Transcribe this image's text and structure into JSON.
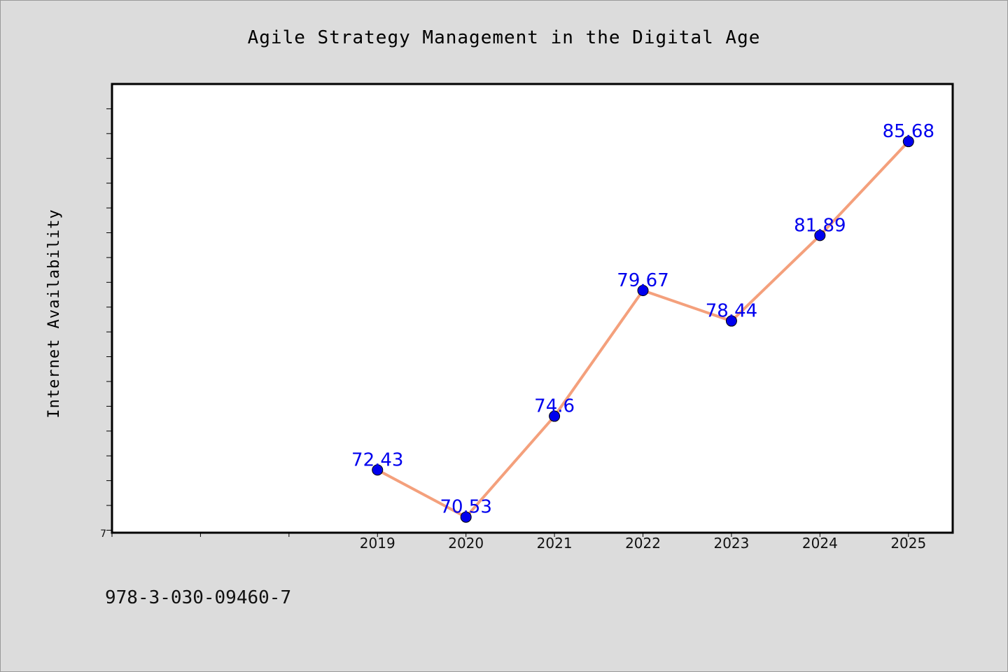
{
  "chart_data": {
    "type": "line",
    "title": "Agile Strategy Management in the Digital Age",
    "ylabel": "Internet Availability",
    "xlabel": "",
    "y_axis_min_label": "7",
    "categories": [
      "2019",
      "2020",
      "2021",
      "2022",
      "2023",
      "2024",
      "2025"
    ],
    "series": [
      {
        "values": [
          72.43,
          70.53,
          74.6,
          79.67,
          78.44,
          81.89,
          85.68
        ],
        "data_labels": [
          "72.43",
          "70.53",
          "74.6",
          "79.67",
          "78.44",
          "81.89",
          "85.68"
        ]
      }
    ],
    "x_range": [
      2016,
      2025.5
    ],
    "ylim": [
      69.9,
      88.0
    ],
    "grid": false,
    "colors": {
      "line": "#f4a07c",
      "marker": "#0000ee",
      "data_label": "#0000ee",
      "plot_background": "#ffffff",
      "figure_background": "#dcdcdc"
    }
  },
  "footnote": "978-3-030-09460-7"
}
